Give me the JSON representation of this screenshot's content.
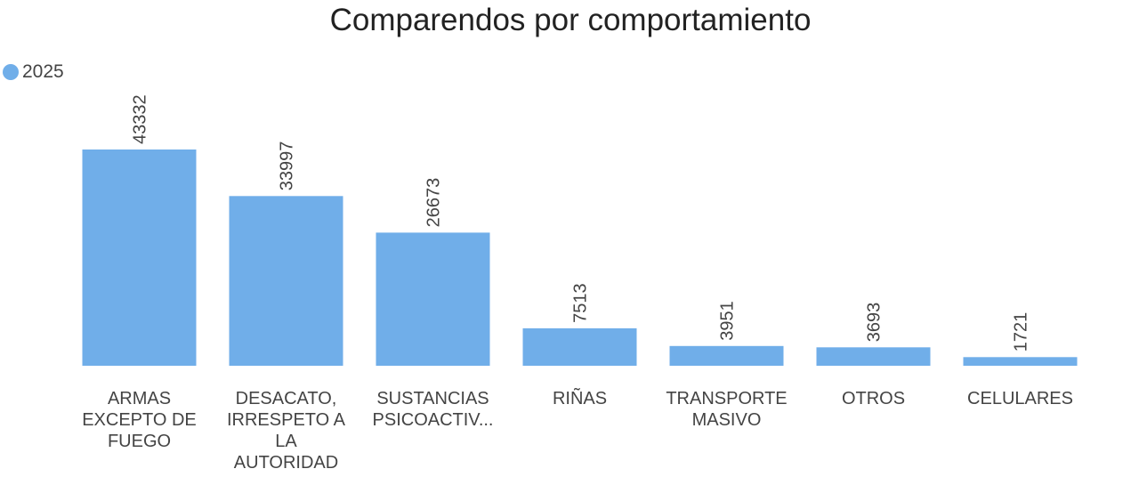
{
  "chart_data": {
    "type": "bar",
    "title": "Comparendos por comportamiento",
    "xlabel": "",
    "ylabel": "",
    "legend_position": "top-left",
    "grid": false,
    "ylim": [
      0,
      43332
    ],
    "categories": [
      [
        "ARMAS",
        "EXCEPTO DE",
        "FUEGO"
      ],
      [
        "DESACATO,",
        "IRRESPETO A",
        "LA",
        "AUTORIDAD"
      ],
      [
        "SUSTANCIAS",
        "PSICOACTIV..."
      ],
      [
        "RIÑAS"
      ],
      [
        "TRANSPORTE",
        "MASIVO"
      ],
      [
        "OTROS"
      ],
      [
        "CELULARES"
      ]
    ],
    "series": [
      {
        "name": "2025",
        "color": "#70aee9",
        "values": [
          43332,
          33997,
          26673,
          7513,
          3951,
          3693,
          1721
        ],
        "labels": [
          "43332",
          "33997",
          "26673",
          "7513",
          "3951",
          "3693",
          "1721"
        ]
      }
    ]
  }
}
